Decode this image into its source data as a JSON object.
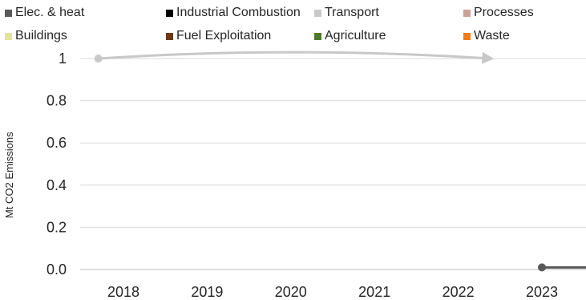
{
  "chart_data": {
    "type": "line",
    "title": "",
    "xlabel": "",
    "ylabel": "Mt CO2 Emissions",
    "categories": [
      "2018",
      "2019",
      "2020",
      "2021",
      "2022",
      "2023"
    ],
    "y_ticks": [
      "0.0",
      "0.2",
      "0.4",
      "0.6",
      "0.8",
      "1"
    ],
    "ylim": [
      0,
      1
    ],
    "grid": true,
    "legend_position": "top",
    "legend": [
      {
        "name": "Elec. & heat",
        "color": "#595959"
      },
      {
        "name": "Industrial Combustion",
        "color": "#000000"
      },
      {
        "name": "Transport",
        "color": "#c8c8c8"
      },
      {
        "name": "Processes",
        "color": "#c9a19a"
      },
      {
        "name": "Buildings",
        "color": "#e3e39a"
      },
      {
        "name": "Fuel Exploitation",
        "color": "#6b3a12"
      },
      {
        "name": "Agriculture",
        "color": "#4d7a2a"
      },
      {
        "name": "Waste",
        "color": "#f07c1a"
      }
    ],
    "series": [
      {
        "name": "Transport",
        "color": "#c8c8c8",
        "x": [
          2017.7,
          2020,
          2022.4
        ],
        "values": [
          1,
          1.03,
          1
        ]
      },
      {
        "name": "Elec. & heat",
        "color": "#595959",
        "x": [
          2023,
          2023.75
        ],
        "values": [
          0.01,
          0.01
        ]
      }
    ]
  }
}
